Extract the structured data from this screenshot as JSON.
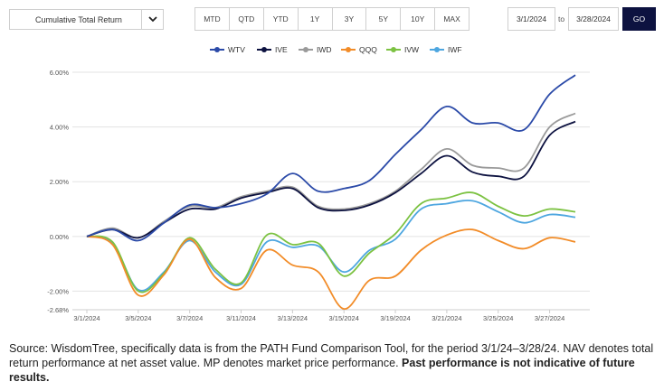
{
  "controls": {
    "metric_select": "Cumulative Total Return",
    "periods": [
      "MTD",
      "QTD",
      "YTD",
      "1Y",
      "3Y",
      "5Y",
      "10Y",
      "MAX"
    ],
    "date_from": "3/1/2024",
    "date_separator": "to",
    "date_to": "3/28/2024",
    "go_label": "GO"
  },
  "caption": {
    "text": "Source: WisdomTree, specifically data is from the PATH Fund Comparison Tool, for the period 3/1/24–3/28/24. NAV denotes total return performance at net asset value. MP denotes market price performance.",
    "bold": "Past performance is not indicative of future results."
  },
  "chart_data": {
    "type": "line",
    "x": [
      "3/1/2024",
      "3/4/2024",
      "3/5/2024",
      "3/6/2024",
      "3/7/2024",
      "3/8/2024",
      "3/11/2024",
      "3/12/2024",
      "3/13/2024",
      "3/14/2024",
      "3/15/2024",
      "3/18/2024",
      "3/19/2024",
      "3/20/2024",
      "3/21/2024",
      "3/22/2024",
      "3/25/2024",
      "3/26/2024",
      "3/27/2024",
      "3/28/2024"
    ],
    "x_tick_labels": [
      "3/1/2024",
      "3/5/2024",
      "3/7/2024",
      "3/11/2024",
      "3/13/2024",
      "3/15/2024",
      "3/19/2024",
      "3/21/2024",
      "3/25/2024",
      "3/27/2024"
    ],
    "y_tick_labels": [
      "6.00%",
      "4.00%",
      "2.00%",
      "0.00%",
      "-2.00%",
      "-2.68%"
    ],
    "ylim": [
      -2.68,
      6.2
    ],
    "grid": true,
    "legend_position": "top",
    "series": [
      {
        "name": "WTV",
        "color": "#2b4aa8",
        "values": [
          0,
          0.25,
          -0.15,
          0.5,
          1.15,
          1.05,
          1.2,
          1.55,
          2.3,
          1.65,
          1.75,
          2.05,
          3.0,
          3.9,
          4.75,
          4.15,
          4.15,
          3.9,
          5.2,
          5.9
        ]
      },
      {
        "name": "IVE",
        "color": "#0d1240",
        "values": [
          0,
          0.25,
          -0.05,
          0.5,
          1.0,
          1.0,
          1.4,
          1.6,
          1.75,
          1.05,
          0.95,
          1.15,
          1.6,
          2.3,
          2.95,
          2.35,
          2.2,
          2.2,
          3.7,
          4.2
        ]
      },
      {
        "name": "IWD",
        "color": "#9a9a9a",
        "values": [
          0,
          0.3,
          -0.05,
          0.55,
          1.1,
          1.05,
          1.45,
          1.65,
          1.8,
          1.1,
          1.0,
          1.2,
          1.65,
          2.45,
          3.2,
          2.6,
          2.5,
          2.5,
          4.0,
          4.5
        ]
      },
      {
        "name": "QQQ",
        "color": "#f28c28",
        "values": [
          0,
          -0.3,
          -2.15,
          -1.4,
          -0.1,
          -1.5,
          -1.9,
          -0.5,
          -1.05,
          -1.3,
          -2.65,
          -1.6,
          -1.45,
          -0.5,
          0.05,
          0.25,
          -0.15,
          -0.45,
          -0.05,
          -0.2
        ]
      },
      {
        "name": "IVW",
        "color": "#7cc242",
        "values": [
          0,
          -0.2,
          -2.0,
          -1.35,
          -0.05,
          -1.2,
          -1.7,
          0.05,
          -0.3,
          -0.25,
          -1.45,
          -0.6,
          0.1,
          1.2,
          1.4,
          1.6,
          1.1,
          0.75,
          1.0,
          0.9
        ]
      },
      {
        "name": "IWF",
        "color": "#4da6e0",
        "values": [
          0,
          -0.25,
          -1.95,
          -1.3,
          -0.15,
          -1.3,
          -1.75,
          -0.2,
          -0.4,
          -0.35,
          -1.3,
          -0.5,
          -0.1,
          1.0,
          1.2,
          1.3,
          0.9,
          0.5,
          0.8,
          0.7
        ]
      }
    ]
  }
}
